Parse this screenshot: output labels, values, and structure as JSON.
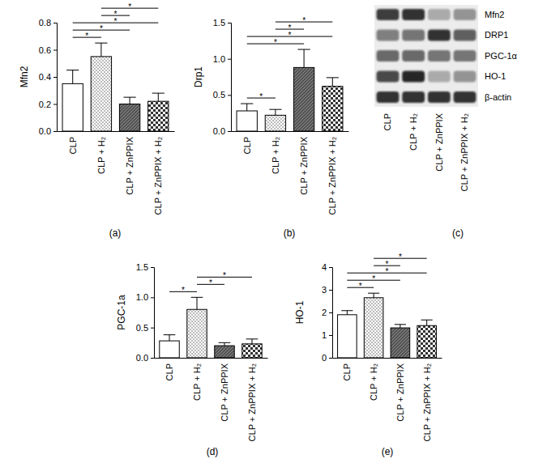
{
  "chart_data": [
    {
      "type": "bar",
      "title": "(a)",
      "y_label": "Mfn2",
      "categories": [
        "CLP",
        "CLP + H₂",
        "CLP + ZnPPIX",
        "CLP + ZnPPIX + H₂"
      ],
      "values": [
        0.35,
        0.55,
        0.2,
        0.22
      ],
      "errors": [
        0.1,
        0.1,
        0.05,
        0.06
      ],
      "colors": [
        "#ffffff",
        "#ffffff",
        "#555555",
        "#ffffff"
      ],
      "ylim": [
        0,
        0.8
      ],
      "yticks": [
        {
          "value": 0,
          "label": "0.0"
        },
        0.2,
        0.4,
        0.6,
        0.8
      ],
      "significance": [
        {
          "pair": [
            0,
            1
          ],
          "label": "*"
        },
        {
          "pair": [
            0,
            2
          ],
          "label": "*"
        },
        {
          "pair": [
            0,
            3
          ],
          "label": "*"
        },
        {
          "pair": [
            1,
            2
          ],
          "label": "*"
        },
        {
          "pair": [
            1,
            3
          ],
          "label": "*"
        }
      ]
    },
    {
      "type": "bar",
      "title": "(b)",
      "y_label": "Drp1",
      "categories": [
        "CLP",
        "CLP + H₂",
        "CLP + ZnPPIX",
        "CLP + ZnPPIX + H₂"
      ],
      "values": [
        0.28,
        0.22,
        0.88,
        0.62
      ],
      "errors": [
        0.1,
        0.08,
        0.25,
        0.12
      ],
      "colors": [
        "#ffffff",
        "#ffffff",
        "#555555",
        "#ffffff"
      ],
      "ylim": [
        0,
        1.5
      ],
      "yticks": [
        {
          "value": 0,
          "label": "0.0"
        },
        0.5,
        {
          "value": 1,
          "label": "1.0"
        },
        1.5
      ],
      "significance": [
        {
          "pair": [
            0,
            1
          ],
          "label": "*"
        },
        {
          "pair": [
            0,
            2
          ],
          "label": "*"
        },
        {
          "pair": [
            0,
            3
          ],
          "label": "*"
        },
        {
          "pair": [
            1,
            2
          ],
          "label": "*"
        },
        {
          "pair": [
            1,
            3
          ],
          "label": "*"
        }
      ]
    },
    {
      "type": "blot",
      "title": "(c)",
      "categories": [
        "CLP",
        "CLP + H₂",
        "CLP + ZnPPIX",
        "CLP + ZnPPIX + H₂"
      ],
      "intensity_range": [
        0,
        1
      ],
      "series": [
        {
          "name": "Mfn2",
          "values": [
            0.8,
            0.85,
            0.3,
            0.4
          ]
        },
        {
          "name": "DRP1",
          "values": [
            0.5,
            0.55,
            0.85,
            0.65
          ]
        },
        {
          "name": "PGC-1α",
          "values": [
            0.6,
            0.6,
            0.55,
            0.55
          ]
        },
        {
          "name": "HO-1",
          "values": [
            0.75,
            0.9,
            0.3,
            0.4
          ]
        },
        {
          "name": "β-actin",
          "values": [
            0.85,
            0.85,
            0.85,
            0.85
          ]
        }
      ]
    },
    {
      "type": "bar",
      "title": "(d)",
      "y_label": "PGC-1a",
      "categories": [
        "CLP",
        "CLP + H₂",
        "CLP + ZnPPIX",
        "CLP + ZnPPIX + H₂"
      ],
      "values": [
        0.28,
        0.8,
        0.2,
        0.23
      ],
      "errors": [
        0.1,
        0.2,
        0.05,
        0.08
      ],
      "colors": [
        "#ffffff",
        "#ffffff",
        "#555555",
        "#ffffff"
      ],
      "ylim": [
        0,
        1.5
      ],
      "yticks": [
        {
          "value": 0,
          "label": "0.0"
        },
        0.5,
        {
          "value": 1,
          "label": "1.0"
        },
        1.5
      ],
      "significance": [
        {
          "pair": [
            0,
            1
          ],
          "label": "*"
        },
        {
          "pair": [
            1,
            2
          ],
          "label": "*"
        },
        {
          "pair": [
            1,
            3
          ],
          "label": "*"
        }
      ]
    },
    {
      "type": "bar",
      "title": "(e)",
      "y_label": "HO-1",
      "categories": [
        "CLP",
        "CLP + H₂",
        "CLP + ZnPPIX",
        "CLP + ZnPPIX + H₂"
      ],
      "values": [
        1.9,
        2.65,
        1.32,
        1.42
      ],
      "errors": [
        0.18,
        0.2,
        0.15,
        0.25
      ],
      "colors": [
        "#ffffff",
        "#ffffff",
        "#555555",
        "#ffffff"
      ],
      "ylim": [
        0,
        4
      ],
      "yticks": [
        0,
        1,
        2,
        3,
        4
      ],
      "significance": [
        {
          "pair": [
            0,
            1
          ],
          "label": "*"
        },
        {
          "pair": [
            0,
            2
          ],
          "label": "*"
        },
        {
          "pair": [
            0,
            3
          ],
          "label": "*"
        },
        {
          "pair": [
            1,
            2
          ],
          "label": "*"
        },
        {
          "pair": [
            1,
            3
          ],
          "label": "*"
        }
      ]
    }
  ]
}
